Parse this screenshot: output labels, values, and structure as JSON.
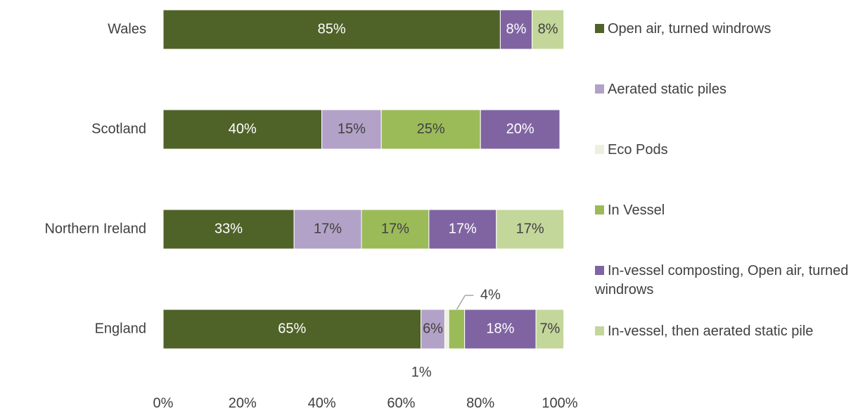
{
  "chart_data": {
    "type": "stacked_barh",
    "categories": [
      "Wales",
      "Scotland",
      "Northern Ireland",
      "England"
    ],
    "series": [
      {
        "name": "Open air, turned windrows",
        "color": "#4f6228",
        "values": [
          85,
          40,
          33,
          65
        ],
        "value_labels": [
          "85%",
          "40%",
          "33%",
          "65%"
        ]
      },
      {
        "name": "Aerated static piles",
        "color": "#b3a2c7",
        "values": [
          null,
          15,
          17,
          6
        ],
        "value_labels": [
          null,
          "15%",
          "17%",
          "6%"
        ]
      },
      {
        "name": "Eco Pods",
        "color": "#ebf1de",
        "values": [
          null,
          null,
          null,
          1
        ],
        "value_labels": [
          null,
          null,
          null,
          "1%"
        ]
      },
      {
        "name": "In Vessel",
        "color": "#9bbb59",
        "values": [
          null,
          25,
          17,
          4
        ],
        "value_labels": [
          null,
          "25%",
          "17%",
          "4%"
        ]
      },
      {
        "name": "In-vessel composting, Open air, turned windrows",
        "color": "#8064a2",
        "values": [
          8,
          20,
          17,
          18
        ],
        "value_labels": [
          "8%",
          "20%",
          "17%",
          "18%"
        ]
      },
      {
        "name": "In-vessel, then aerated static pile",
        "color": "#c4d79b",
        "values": [
          8,
          null,
          17,
          7
        ],
        "value_labels": [
          "8%",
          null,
          "17%",
          "7%"
        ]
      }
    ],
    "xlim": [
      0,
      100
    ],
    "xticks": [
      {
        "value": 0,
        "label": "0%"
      },
      {
        "value": 20,
        "label": "20%"
      },
      {
        "value": 40,
        "label": "40%"
      },
      {
        "value": 60,
        "label": "60%"
      },
      {
        "value": 80,
        "label": "80%"
      },
      {
        "value": 100,
        "label": "100%"
      }
    ],
    "legend": "right"
  }
}
